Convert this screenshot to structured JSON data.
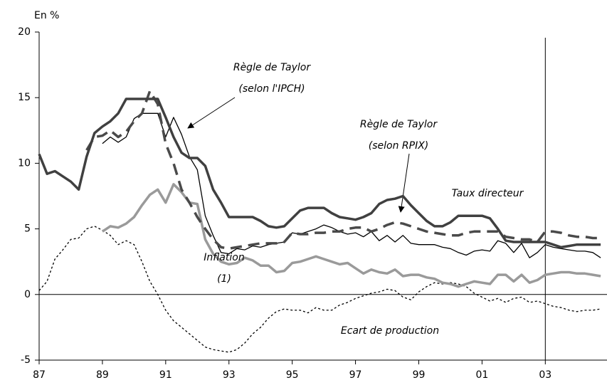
{
  "chart_data": {
    "type": "line",
    "y_label": "En %",
    "x": [
      1987,
      1987.25,
      1987.5,
      1987.75,
      1988,
      1988.25,
      1988.5,
      1988.75,
      1989,
      1989.25,
      1989.5,
      1989.75,
      1990,
      1990.25,
      1990.5,
      1990.75,
      1991,
      1991.25,
      1991.5,
      1991.75,
      1992,
      1992.25,
      1992.5,
      1992.75,
      1993,
      1993.25,
      1993.5,
      1993.75,
      1994,
      1994.25,
      1994.5,
      1994.75,
      1995,
      1995.25,
      1995.5,
      1995.75,
      1996,
      1996.25,
      1996.5,
      1996.75,
      1997,
      1997.25,
      1997.5,
      1997.75,
      1998,
      1998.25,
      1998.5,
      1998.75,
      1999,
      1999.25,
      1999.5,
      1999.75,
      2000,
      2000.25,
      2000.5,
      2000.75,
      2001,
      2001.25,
      2001.5,
      2001.75,
      2002,
      2002.25,
      2002.5,
      2002.75,
      2003,
      2003.25,
      2003.5,
      2003.75,
      2004,
      2004.25,
      2004.5,
      2004.75
    ],
    "series": [
      {
        "name": "Taux directeur",
        "color": "#404040",
        "values": [
          10.7,
          9.2,
          9.4,
          9.0,
          8.6,
          8.0,
          10.5,
          12.3,
          12.8,
          13.2,
          13.8,
          14.9,
          14.9,
          14.9,
          14.9,
          14.9,
          13.5,
          12.0,
          10.8,
          10.4,
          10.4,
          9.8,
          8.0,
          7.0,
          5.9,
          5.9,
          5.9,
          5.9,
          5.6,
          5.2,
          5.1,
          5.2,
          5.8,
          6.4,
          6.6,
          6.6,
          6.6,
          6.2,
          5.9,
          5.8,
          5.7,
          5.9,
          6.2,
          6.9,
          7.2,
          7.3,
          7.5,
          6.8,
          6.2,
          5.6,
          5.2,
          5.2,
          5.5,
          6.0,
          6.0,
          6.0,
          6.0,
          5.8,
          5.0,
          4.1,
          4.0,
          4.0,
          4.0,
          4.0,
          4.0,
          3.8,
          3.6,
          3.7,
          3.8,
          3.8,
          3.8,
          3.8
        ]
      },
      {
        "name": "Règle de Taylor (selon l'IPCH)",
        "color": "#000000",
        "values": [
          null,
          null,
          null,
          null,
          null,
          null,
          null,
          null,
          11.5,
          12.0,
          11.6,
          12.0,
          13.4,
          13.8,
          13.8,
          13.8,
          12.0,
          13.5,
          12.2,
          10.5,
          9.5,
          6.0,
          4.5,
          3.2,
          3.1,
          3.5,
          3.4,
          3.7,
          3.6,
          3.8,
          3.9,
          4.0,
          4.7,
          4.6,
          4.8,
          5.0,
          5.3,
          5.1,
          4.8,
          4.6,
          4.7,
          4.4,
          4.8,
          4.1,
          4.5,
          4.0,
          4.5,
          3.9,
          3.8,
          3.8,
          3.8,
          3.6,
          3.5,
          3.2,
          3.0,
          3.3,
          3.4,
          3.3,
          4.1,
          3.9,
          3.2,
          3.9,
          2.8,
          3.2,
          3.8,
          3.6,
          3.5,
          3.4,
          3.3,
          3.3,
          3.2,
          2.8
        ]
      },
      {
        "name": "Règle de Taylor (selon RPIX)",
        "color": "#4a4a4a",
        "values": [
          null,
          null,
          null,
          null,
          null,
          null,
          11.0,
          12.0,
          12.1,
          12.5,
          12.0,
          12.4,
          13.2,
          13.8,
          15.5,
          14.5,
          11.5,
          10.0,
          8.0,
          7.0,
          5.9,
          5.0,
          4.2,
          3.6,
          3.5,
          3.6,
          3.7,
          3.8,
          3.9,
          3.9,
          3.9,
          4.0,
          4.7,
          4.6,
          4.6,
          4.7,
          4.7,
          4.8,
          4.8,
          5.0,
          5.1,
          5.1,
          4.8,
          5.0,
          5.3,
          5.5,
          5.4,
          5.2,
          5.0,
          4.8,
          4.7,
          4.6,
          4.5,
          4.5,
          4.7,
          4.8,
          4.8,
          4.8,
          4.8,
          4.4,
          4.3,
          4.2,
          4.2,
          4.0,
          4.8,
          4.8,
          4.7,
          4.5,
          4.4,
          4.4,
          4.3,
          4.3
        ]
      },
      {
        "name": "Inflation (1)",
        "color": "#9a9a9a",
        "values": [
          null,
          null,
          null,
          null,
          null,
          null,
          null,
          null,
          4.8,
          5.2,
          5.1,
          5.4,
          5.9,
          6.8,
          7.6,
          8.0,
          7.0,
          8.4,
          7.8,
          7.0,
          6.9,
          4.2,
          3.1,
          2.5,
          2.3,
          2.4,
          2.8,
          2.6,
          2.2,
          2.2,
          1.7,
          1.8,
          2.4,
          2.5,
          2.7,
          2.9,
          2.7,
          2.5,
          2.3,
          2.4,
          2.0,
          1.6,
          1.9,
          1.7,
          1.6,
          1.9,
          1.4,
          1.5,
          1.5,
          1.3,
          1.2,
          0.9,
          0.8,
          0.6,
          0.8,
          1.0,
          0.9,
          0.8,
          1.5,
          1.5,
          1.0,
          1.5,
          0.9,
          1.1,
          1.5,
          1.6,
          1.7,
          1.7,
          1.6,
          1.6,
          1.5,
          1.4
        ]
      },
      {
        "name": "Ecart de production",
        "color": "#000000",
        "values": [
          0.3,
          1.0,
          2.7,
          3.4,
          4.2,
          4.3,
          5.0,
          5.2,
          4.9,
          4.5,
          3.8,
          4.1,
          3.8,
          2.5,
          1.0,
          0.0,
          -1.2,
          -2.0,
          -2.5,
          -3.0,
          -3.5,
          -4.0,
          -4.2,
          -4.3,
          -4.4,
          -4.2,
          -3.7,
          -3.0,
          -2.5,
          -1.8,
          -1.3,
          -1.1,
          -1.2,
          -1.2,
          -1.4,
          -1.0,
          -1.2,
          -1.2,
          -0.8,
          -0.6,
          -0.3,
          -0.1,
          0.1,
          0.2,
          0.4,
          0.3,
          -0.2,
          -0.4,
          0.2,
          0.6,
          0.9,
          0.8,
          0.9,
          0.8,
          0.6,
          0.1,
          -0.2,
          -0.5,
          -0.3,
          -0.6,
          -0.3,
          -0.2,
          -0.6,
          -0.5,
          -0.7,
          -0.9,
          -1.0,
          -1.2,
          -1.3,
          -1.2,
          -1.2,
          -1.1
        ]
      }
    ],
    "xlim": [
      1987,
      2004.95
    ],
    "xticks": [
      {
        "value": 1987,
        "label": "87"
      },
      {
        "value": 1989,
        "label": "89"
      },
      {
        "value": 1991,
        "label": "91"
      },
      {
        "value": 1993,
        "label": "93"
      },
      {
        "value": 1995,
        "label": "95"
      },
      {
        "value": 1997,
        "label": "97"
      },
      {
        "value": 1999,
        "label": "99"
      },
      {
        "value": 2001,
        "label": "01"
      },
      {
        "value": 2003,
        "label": "03"
      }
    ],
    "ylim": [
      -5,
      20
    ],
    "yticks": [
      -5,
      0,
      5,
      10,
      15,
      20
    ],
    "vline": 2003,
    "grid": false
  }
}
